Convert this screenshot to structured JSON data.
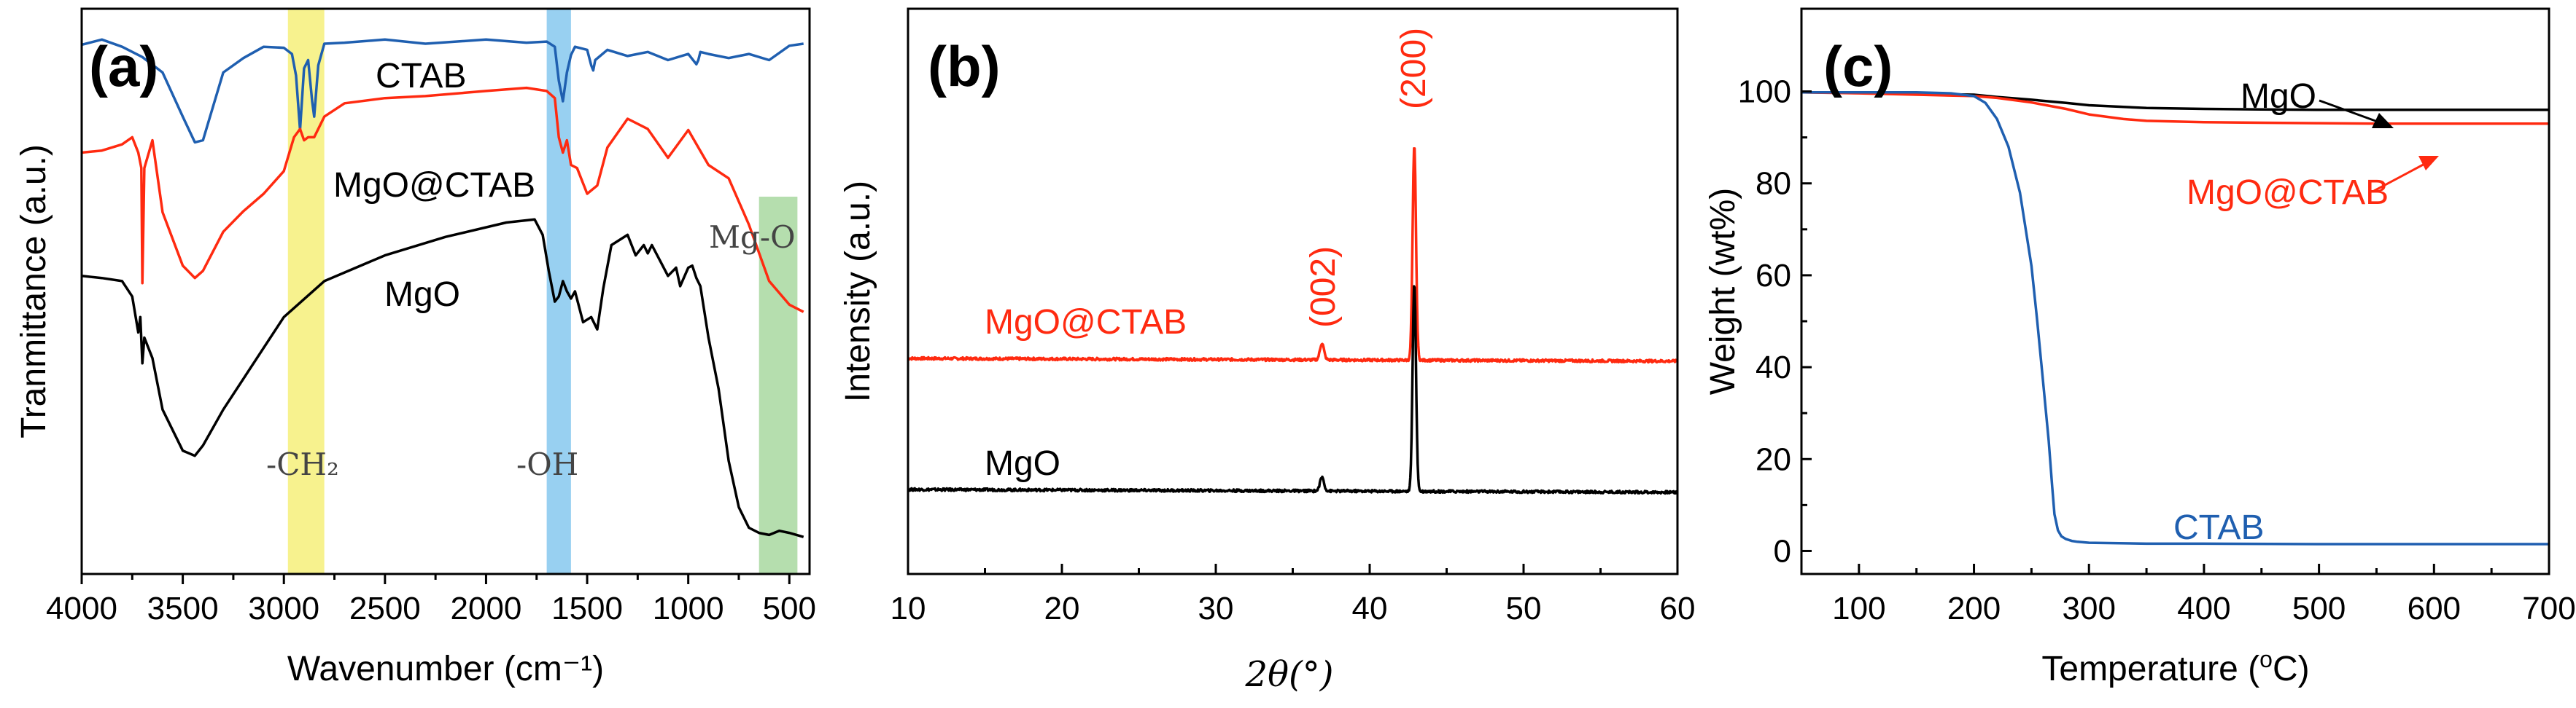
{
  "colors": {
    "ctab_blue": "#1f5fb0",
    "mgo_ctab_red": "#ff2a10",
    "mgo_black": "#000000",
    "band_yellow": "#f6f07a",
    "band_blue": "#86c8ee",
    "band_green": "#a8d8a0"
  },
  "chart_data": [
    {
      "type": "line",
      "panel_label": "(a)",
      "xlabel": "Wavenumber (cm⁻¹)",
      "ylabel": "Tranmittance (a.u.)",
      "xlim": [
        4000,
        400
      ],
      "x_ticks": [
        4000,
        3500,
        3000,
        2500,
        2000,
        1500,
        1000,
        500
      ],
      "y_ticks": [],
      "bands": [
        {
          "from": 2980,
          "to": 2800,
          "label": "-CH₂",
          "color": "#f6f07a"
        },
        {
          "from": 1700,
          "to": 1580,
          "label": "-OH",
          "color": "#86c8ee"
        },
        {
          "from": 650,
          "to": 460,
          "label": "Mg-O",
          "color": "#a8d8a0"
        }
      ],
      "series": [
        {
          "name": "CTAB",
          "color": "#1f5fb0",
          "x": [
            4000,
            3900,
            3800,
            3700,
            3600,
            3500,
            3440,
            3400,
            3350,
            3300,
            3200,
            3100,
            3000,
            2960,
            2940,
            2920,
            2900,
            2880,
            2860,
            2850,
            2830,
            2800,
            2700,
            2500,
            2300,
            2000,
            1800,
            1700,
            1660,
            1640,
            1620,
            1600,
            1580,
            1560,
            1500,
            1480,
            1470,
            1460,
            1400,
            1300,
            1200,
            1100,
            1000,
            960,
            950,
            940,
            900,
            800,
            700,
            600,
            500,
            430
          ],
          "y": [
            96.5,
            97,
            96.3,
            95.3,
            93.8,
            89.5,
            87.0,
            87.2,
            90.5,
            93.8,
            95.2,
            96.3,
            96.2,
            95.6,
            93.5,
            88.2,
            94.2,
            95.0,
            91.0,
            89.5,
            94.5,
            96.6,
            96.7,
            97.0,
            96.6,
            97.0,
            96.7,
            96.8,
            96.3,
            93.0,
            91.0,
            93.8,
            95.5,
            96.3,
            96.0,
            94.5,
            94.0,
            95.0,
            96.0,
            95.4,
            95.8,
            95.0,
            95.6,
            94.6,
            95.0,
            95.8,
            95.6,
            95.2,
            95.6,
            95.0,
            96.4,
            96.6
          ]
        },
        {
          "name": "MgO@CTAB",
          "color": "#ff2a10",
          "x": [
            4000,
            3900,
            3800,
            3750,
            3720,
            3705,
            3700,
            3690,
            3650,
            3600,
            3500,
            3440,
            3400,
            3300,
            3200,
            3100,
            3000,
            2950,
            2920,
            2900,
            2880,
            2850,
            2800,
            2700,
            2500,
            2300,
            2000,
            1800,
            1700,
            1660,
            1640,
            1620,
            1600,
            1580,
            1550,
            1500,
            1450,
            1400,
            1300,
            1200,
            1100,
            1000,
            900,
            800,
            700,
            600,
            500,
            430
          ],
          "y": [
            86.0,
            86.2,
            86.8,
            87.5,
            86.0,
            84.5,
            73.3,
            84.5,
            87.2,
            80.2,
            75.0,
            73.8,
            74.5,
            78.3,
            80.3,
            82.0,
            84.2,
            87.5,
            88.3,
            87.2,
            87.5,
            87.5,
            89.5,
            90.8,
            91.3,
            91.5,
            92.0,
            92.3,
            92.0,
            91.3,
            87.5,
            86.0,
            87.2,
            84.8,
            84.5,
            82.0,
            82.8,
            86.5,
            89.3,
            88.3,
            85.5,
            88.2,
            84.8,
            83.5,
            79.0,
            73.5,
            71.2,
            70.5
          ]
        },
        {
          "name": "MgO",
          "color": "#000000",
          "x": [
            4000,
            3900,
            3800,
            3750,
            3720,
            3710,
            3700,
            3690,
            3650,
            3600,
            3500,
            3440,
            3400,
            3300,
            3200,
            3100,
            3000,
            2800,
            2500,
            2200,
            1900,
            1760,
            1720,
            1690,
            1660,
            1640,
            1620,
            1600,
            1580,
            1560,
            1520,
            1480,
            1450,
            1420,
            1380,
            1300,
            1260,
            1220,
            1200,
            1180,
            1140,
            1100,
            1060,
            1040,
            1000,
            980,
            960,
            940,
            900,
            850,
            800,
            750,
            700,
            650,
            600,
            550,
            500,
            430
          ],
          "y": [
            74.0,
            73.8,
            73.5,
            72.0,
            68.5,
            70.0,
            65.5,
            68.0,
            66.0,
            61.0,
            57.0,
            56.5,
            57.5,
            61.0,
            64.0,
            67.0,
            70.0,
            73.5,
            76.0,
            77.8,
            79.2,
            79.5,
            78.0,
            74.5,
            71.5,
            72.0,
            73.5,
            72.5,
            71.8,
            72.5,
            69.5,
            70.0,
            68.8,
            72.8,
            77.0,
            78.0,
            76.0,
            77.0,
            76.2,
            77.0,
            75.5,
            74.0,
            74.8,
            73.0,
            74.8,
            75.0,
            73.8,
            73.0,
            68.0,
            63.0,
            56.0,
            51.5,
            49.5,
            49.0,
            48.8,
            49.2,
            49.0,
            48.6
          ]
        }
      ],
      "series_labels": [
        "CTAB",
        "MgO@CTAB",
        "MgO"
      ]
    },
    {
      "type": "line",
      "panel_label": "(b)",
      "xlabel": "2θ(°)",
      "ylabel": "Intensity (a.u.)",
      "xlim": [
        10,
        60
      ],
      "x_ticks": [
        10,
        20,
        30,
        40,
        50,
        60
      ],
      "y_ticks": [],
      "peak_labels": [
        {
          "text": "(002)",
          "x": 36.9
        },
        {
          "text": "(200)",
          "x": 42.9
        }
      ],
      "series": [
        {
          "name": "MgO@CTAB",
          "color": "#ff2a10",
          "baseline": 0.5,
          "peaks": [
            {
              "x": 36.9,
              "h": 0.12
            },
            {
              "x": 42.9,
              "h": 1.55
            }
          ]
        },
        {
          "name": "MgO",
          "color": "#000000",
          "baseline": 0.0,
          "peaks": [
            {
              "x": 36.9,
              "h": 0.1
            },
            {
              "x": 42.9,
              "h": 1.5
            }
          ]
        }
      ]
    },
    {
      "type": "line",
      "panel_label": "(c)",
      "xlabel": "Temperature (°C)",
      "ylabel": "Weight (wt%)",
      "xlim": [
        50,
        700
      ],
      "ylim": [
        -5,
        118
      ],
      "x_ticks": [
        100,
        200,
        300,
        400,
        500,
        600,
        700
      ],
      "y_ticks": [
        0,
        20,
        40,
        60,
        80,
        100
      ],
      "series": [
        {
          "name": "MgO",
          "color": "#000000",
          "x": [
            50,
            100,
            150,
            200,
            220,
            250,
            280,
            300,
            350,
            400,
            450,
            500,
            550,
            600,
            650,
            700
          ],
          "y": [
            99.8,
            99.7,
            99.5,
            99.3,
            98.8,
            98.2,
            97.5,
            97.0,
            96.4,
            96.2,
            96.1,
            96.0,
            96.0,
            96.0,
            96.0,
            96.0
          ]
        },
        {
          "name": "MgO@CTAB",
          "color": "#ff2a10",
          "x": [
            50,
            100,
            150,
            200,
            220,
            250,
            280,
            300,
            330,
            350,
            400,
            450,
            500,
            550,
            600,
            650,
            700
          ],
          "y": [
            99.8,
            99.6,
            99.3,
            99.0,
            98.6,
            97.6,
            96.2,
            95.0,
            94.0,
            93.6,
            93.3,
            93.2,
            93.1,
            93.0,
            93.0,
            93.0,
            93.0
          ]
        },
        {
          "name": "CTAB",
          "color": "#1f5fb0",
          "x": [
            50,
            100,
            150,
            180,
            200,
            210,
            220,
            230,
            240,
            250,
            255,
            260,
            265,
            268,
            270,
            273,
            276,
            280,
            285,
            290,
            300,
            350,
            400,
            500,
            600,
            700
          ],
          "y": [
            99.8,
            99.8,
            99.8,
            99.6,
            99.0,
            97.5,
            94.0,
            88.0,
            78.0,
            62.0,
            50.0,
            37.0,
            24.0,
            14.0,
            8.0,
            4.5,
            3.2,
            2.6,
            2.2,
            2.0,
            1.8,
            1.6,
            1.6,
            1.5,
            1.5,
            1.5
          ]
        }
      ],
      "series_labels": [
        "MgO",
        "MgO@CTAB",
        "CTAB"
      ]
    }
  ]
}
